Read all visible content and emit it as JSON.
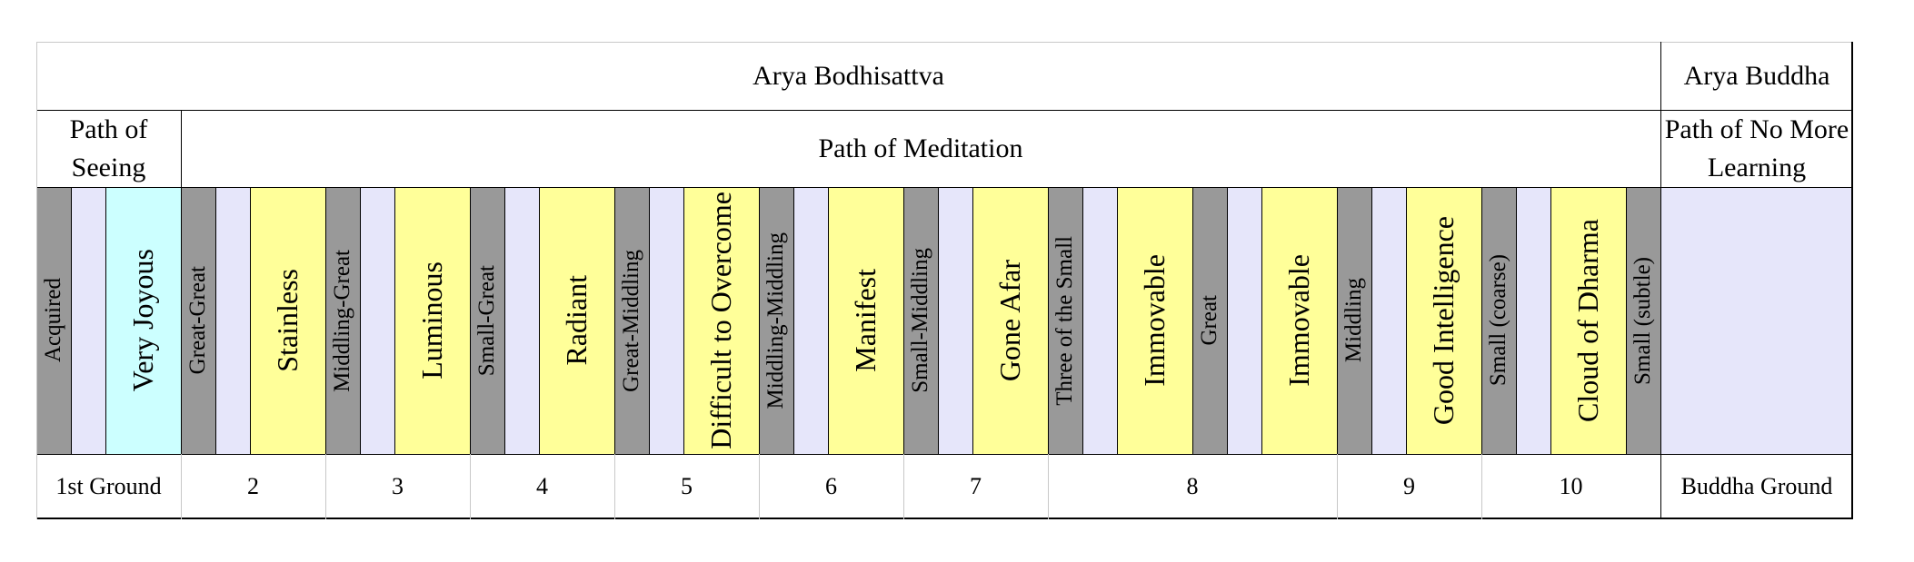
{
  "colors": {
    "gray": "#999999",
    "lavender": "#e6e6fa",
    "cyan": "#ccffff",
    "yellow": "#ffff99",
    "white": "#ffffff"
  },
  "header": {
    "bodhisattva": "Arya Bodhisattva",
    "buddha": "Arya Buddha"
  },
  "paths": {
    "seeing": "Path of Seeing",
    "meditation": "Path of Meditation",
    "no_more_learning": "Path of No More Learning"
  },
  "stages": [
    {
      "label": "Acquired",
      "color": "gray",
      "size": "small"
    },
    {
      "label": "",
      "color": "lavender",
      "size": "small"
    },
    {
      "label": "Very Joyous",
      "color": "cyan",
      "size": "large"
    },
    {
      "label": "Great-Great",
      "color": "gray",
      "size": "small"
    },
    {
      "label": "",
      "color": "lavender",
      "size": "small"
    },
    {
      "label": "Stainless",
      "color": "yellow",
      "size": "large"
    },
    {
      "label": "Middling-Great",
      "color": "gray",
      "size": "small"
    },
    {
      "label": "",
      "color": "lavender",
      "size": "small"
    },
    {
      "label": "Luminous",
      "color": "yellow",
      "size": "large"
    },
    {
      "label": "Small-Great",
      "color": "gray",
      "size": "small"
    },
    {
      "label": "",
      "color": "lavender",
      "size": "small"
    },
    {
      "label": "Radiant",
      "color": "yellow",
      "size": "large"
    },
    {
      "label": "Great-Middling",
      "color": "gray",
      "size": "small"
    },
    {
      "label": "",
      "color": "lavender",
      "size": "small"
    },
    {
      "label": "Difficult to Overcome",
      "color": "yellow",
      "size": "large"
    },
    {
      "label": "Middling-Middling",
      "color": "gray",
      "size": "small"
    },
    {
      "label": "",
      "color": "lavender",
      "size": "small"
    },
    {
      "label": "Manifest",
      "color": "yellow",
      "size": "large"
    },
    {
      "label": "Small-Middling",
      "color": "gray",
      "size": "small"
    },
    {
      "label": "",
      "color": "lavender",
      "size": "small"
    },
    {
      "label": "Gone Afar",
      "color": "yellow",
      "size": "large"
    },
    {
      "label": "Three of the Small",
      "color": "gray",
      "size": "small"
    },
    {
      "label": "",
      "color": "lavender",
      "size": "small"
    },
    {
      "label": "Immovable",
      "color": "yellow",
      "size": "large"
    },
    {
      "label": "Great",
      "color": "gray",
      "size": "small"
    },
    {
      "label": "",
      "color": "lavender",
      "size": "small"
    },
    {
      "label": "Immovable",
      "color": "yellow",
      "size": "large"
    },
    {
      "label": "Middling",
      "color": "gray",
      "size": "small"
    },
    {
      "label": "",
      "color": "lavender",
      "size": "small"
    },
    {
      "label": "Good Intelligence",
      "color": "yellow",
      "size": "large"
    },
    {
      "label": "Small (coarse)",
      "color": "gray",
      "size": "small"
    },
    {
      "label": "",
      "color": "lavender",
      "size": "small"
    },
    {
      "label": "Cloud of Dharma",
      "color": "yellow",
      "size": "large"
    },
    {
      "label": "Small (subtle)",
      "color": "gray",
      "size": "small"
    },
    {
      "label": "",
      "color": "lavender",
      "size": "small"
    }
  ],
  "grounds": [
    "1st Ground",
    "2",
    "3",
    "4",
    "5",
    "6",
    "7",
    "8",
    "9",
    "10",
    "Buddha Ground"
  ]
}
